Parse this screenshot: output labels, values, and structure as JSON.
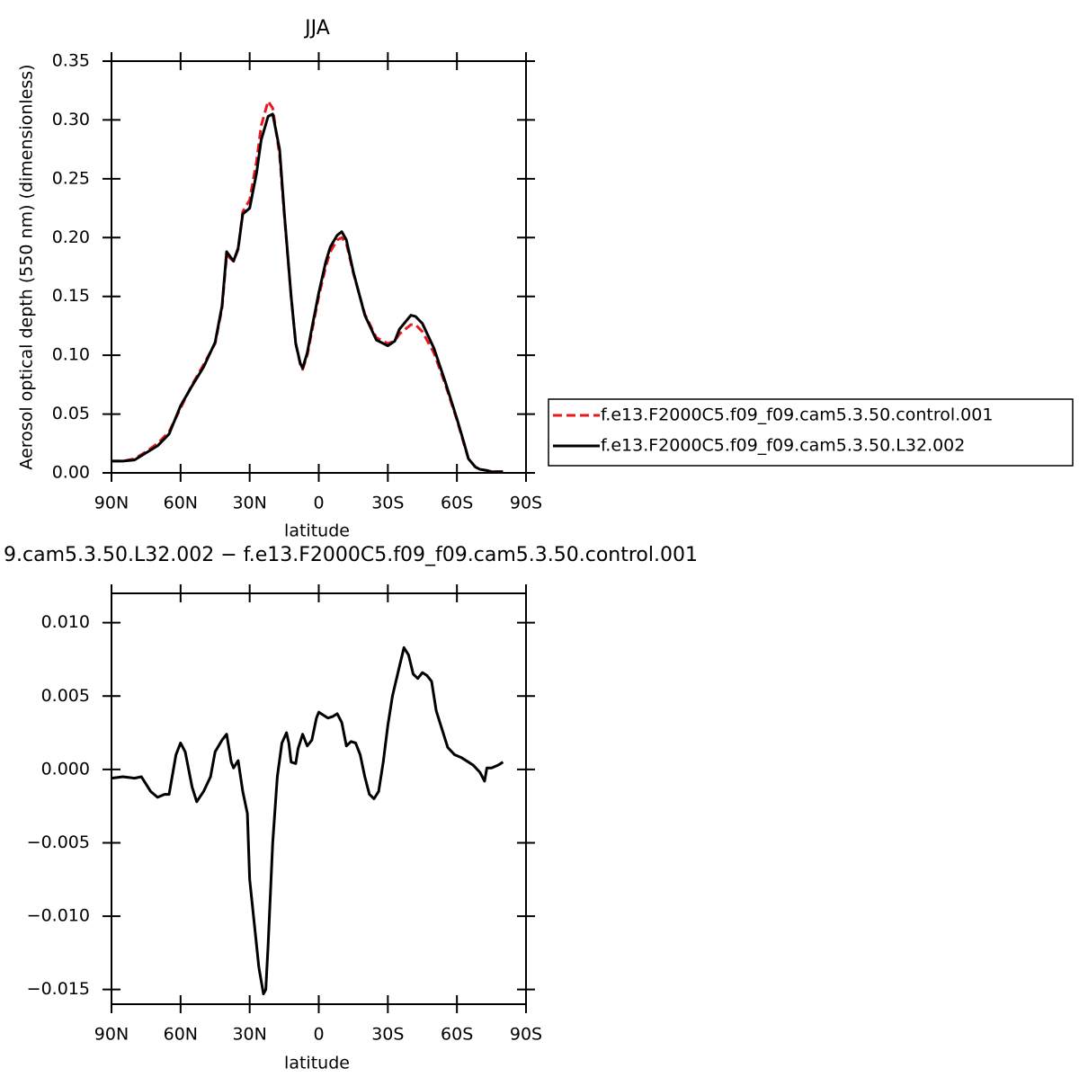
{
  "chart_data": [
    {
      "type": "line",
      "title": "JJA",
      "xlabel": "latitude",
      "ylabel": "Aerosol optical depth (550 nm) (dimensionless)",
      "x": [
        90,
        85,
        80,
        75,
        70,
        65,
        60,
        55,
        50,
        45,
        42,
        40,
        37,
        35,
        33,
        30,
        27,
        25,
        22,
        20,
        17,
        15,
        12,
        10,
        8,
        7,
        5,
        3,
        0,
        -3,
        -5,
        -8,
        -10,
        -12,
        -15,
        -20,
        -25,
        -30,
        -33,
        -35,
        -40,
        -42,
        -45,
        -50,
        -55,
        -60,
        -63,
        -65,
        -68,
        -70,
        -73,
        -75,
        -80
      ],
      "series": [
        {
          "name": "f.e13.F2000C5.f09_f09.cam5.3.50.control.001",
          "color": "#e8191c",
          "linestyle": "dashed",
          "values": [
            0.01,
            0.01,
            0.012,
            0.018,
            0.025,
            0.035,
            0.055,
            0.075,
            0.092,
            0.11,
            0.14,
            0.185,
            0.18,
            0.19,
            0.222,
            0.232,
            0.265,
            0.295,
            0.316,
            0.31,
            0.27,
            0.22,
            0.15,
            0.11,
            0.092,
            0.088,
            0.1,
            0.12,
            0.15,
            0.175,
            0.188,
            0.198,
            0.2,
            0.195,
            0.17,
            0.135,
            0.115,
            0.11,
            0.112,
            0.118,
            0.126,
            0.126,
            0.12,
            0.102,
            0.075,
            0.045,
            0.025,
            0.012,
            0.005,
            0.003,
            0.002,
            0.001,
            0.001
          ]
        },
        {
          "name": "f.e13.F2000C5.f09_f09.cam5.3.50.L32.002",
          "color": "#000000",
          "linestyle": "solid",
          "values": [
            0.01,
            0.01,
            0.011,
            0.017,
            0.023,
            0.033,
            0.057,
            0.074,
            0.09,
            0.111,
            0.142,
            0.188,
            0.18,
            0.191,
            0.22,
            0.225,
            0.255,
            0.283,
            0.303,
            0.305,
            0.275,
            0.222,
            0.15,
            0.11,
            0.093,
            0.089,
            0.102,
            0.123,
            0.153,
            0.179,
            0.192,
            0.202,
            0.205,
            0.198,
            0.171,
            0.134,
            0.113,
            0.108,
            0.112,
            0.122,
            0.134,
            0.133,
            0.127,
            0.106,
            0.077,
            0.046,
            0.026,
            0.012,
            0.005,
            0.003,
            0.002,
            0.001,
            0.001
          ]
        }
      ],
      "xlim": [
        90,
        -90
      ],
      "xticks": [
        {
          "value": 90,
          "label": "90N"
        },
        {
          "value": 60,
          "label": "60N"
        },
        {
          "value": 30,
          "label": "30N"
        },
        0,
        {
          "value": -30,
          "label": "30S"
        },
        {
          "value": -60,
          "label": "60S"
        },
        {
          "value": -90,
          "label": "90S"
        }
      ],
      "ylim": [
        0,
        0.35
      ],
      "yticks": [
        {
          "value": 0,
          "label": "0.00"
        },
        0.05,
        {
          "value": 0.1,
          "label": "0.10"
        },
        0.15,
        {
          "value": 0.2,
          "label": "0.20"
        },
        0.25,
        {
          "value": 0.3,
          "label": "0.30"
        },
        0.35
      ],
      "legend": "outside-right"
    },
    {
      "type": "line",
      "title": "9.cam5.3.50.L32.002 − f.e13.F2000C5.f09_f09.cam5.3.50.control.001",
      "xlabel": "latitude",
      "x": [
        90,
        85,
        80,
        77,
        73,
        70,
        67,
        65,
        62,
        60,
        58,
        55,
        53,
        50,
        47,
        45,
        42,
        40,
        38,
        37,
        35,
        33,
        31,
        30,
        28,
        26,
        24,
        23,
        22,
        20,
        18,
        16,
        14,
        13,
        12,
        10,
        9,
        7,
        5,
        3,
        1,
        0,
        -2,
        -4,
        -6,
        -8,
        -10,
        -12,
        -14,
        -16,
        -18,
        -20,
        -22,
        -24,
        -26,
        -28,
        -30,
        -32,
        -35,
        -37,
        -39,
        -41,
        -43,
        -45,
        -47,
        -49,
        -51,
        -53,
        -56,
        -59,
        -62,
        -65,
        -67,
        -70,
        -72,
        -73,
        -75,
        -78,
        -80
      ],
      "series": [
        {
          "color": "#000000",
          "linestyle": "solid",
          "values": [
            -0.0006,
            -0.0005,
            -0.0006,
            -0.0005,
            -0.0015,
            -0.0019,
            -0.0017,
            -0.0017,
            0.001,
            0.0018,
            0.0012,
            -0.0012,
            -0.0022,
            -0.0015,
            -0.0005,
            0.0012,
            0.002,
            0.0024,
            0.0005,
            0.0001,
            0.0006,
            -0.0015,
            -0.003,
            -0.0075,
            -0.0105,
            -0.0135,
            -0.0153,
            -0.015,
            -0.012,
            -0.005,
            -0.0005,
            0.0018,
            0.0025,
            0.0018,
            0.0005,
            0.0004,
            0.0014,
            0.0024,
            0.0016,
            0.002,
            0.0035,
            0.0039,
            0.0037,
            0.0035,
            0.0036,
            0.0038,
            0.0032,
            0.0016,
            0.0019,
            0.0018,
            0.001,
            -0.0005,
            -0.0017,
            -0.002,
            -0.0015,
            0.0005,
            0.003,
            0.005,
            0.007,
            0.0083,
            0.0078,
            0.0065,
            0.0062,
            0.0066,
            0.0064,
            0.006,
            0.004,
            0.003,
            0.0015,
            0.001,
            0.0008,
            0.0005,
            0.0003,
            -0.0002,
            -0.0008,
            0.0001,
            0.0001,
            0.0003,
            0.0005
          ]
        }
      ],
      "xlim": [
        90,
        -90
      ],
      "xticks": [
        {
          "value": 90,
          "label": "90N"
        },
        {
          "value": 60,
          "label": "60N"
        },
        {
          "value": 30,
          "label": "30N"
        },
        0,
        {
          "value": -30,
          "label": "30S"
        },
        {
          "value": -60,
          "label": "60S"
        },
        {
          "value": -90,
          "label": "90S"
        }
      ],
      "ylim": [
        -0.016,
        0.012
      ],
      "yticks": [
        {
          "value": 0.01,
          "label": "0.010"
        },
        0.005,
        {
          "value": 0,
          "label": "0.000"
        },
        {
          "value": -0.005,
          "label": "−0.005"
        },
        {
          "value": -0.01,
          "label": "−0.010"
        },
        {
          "value": -0.015,
          "label": "−0.015"
        }
      ]
    }
  ]
}
